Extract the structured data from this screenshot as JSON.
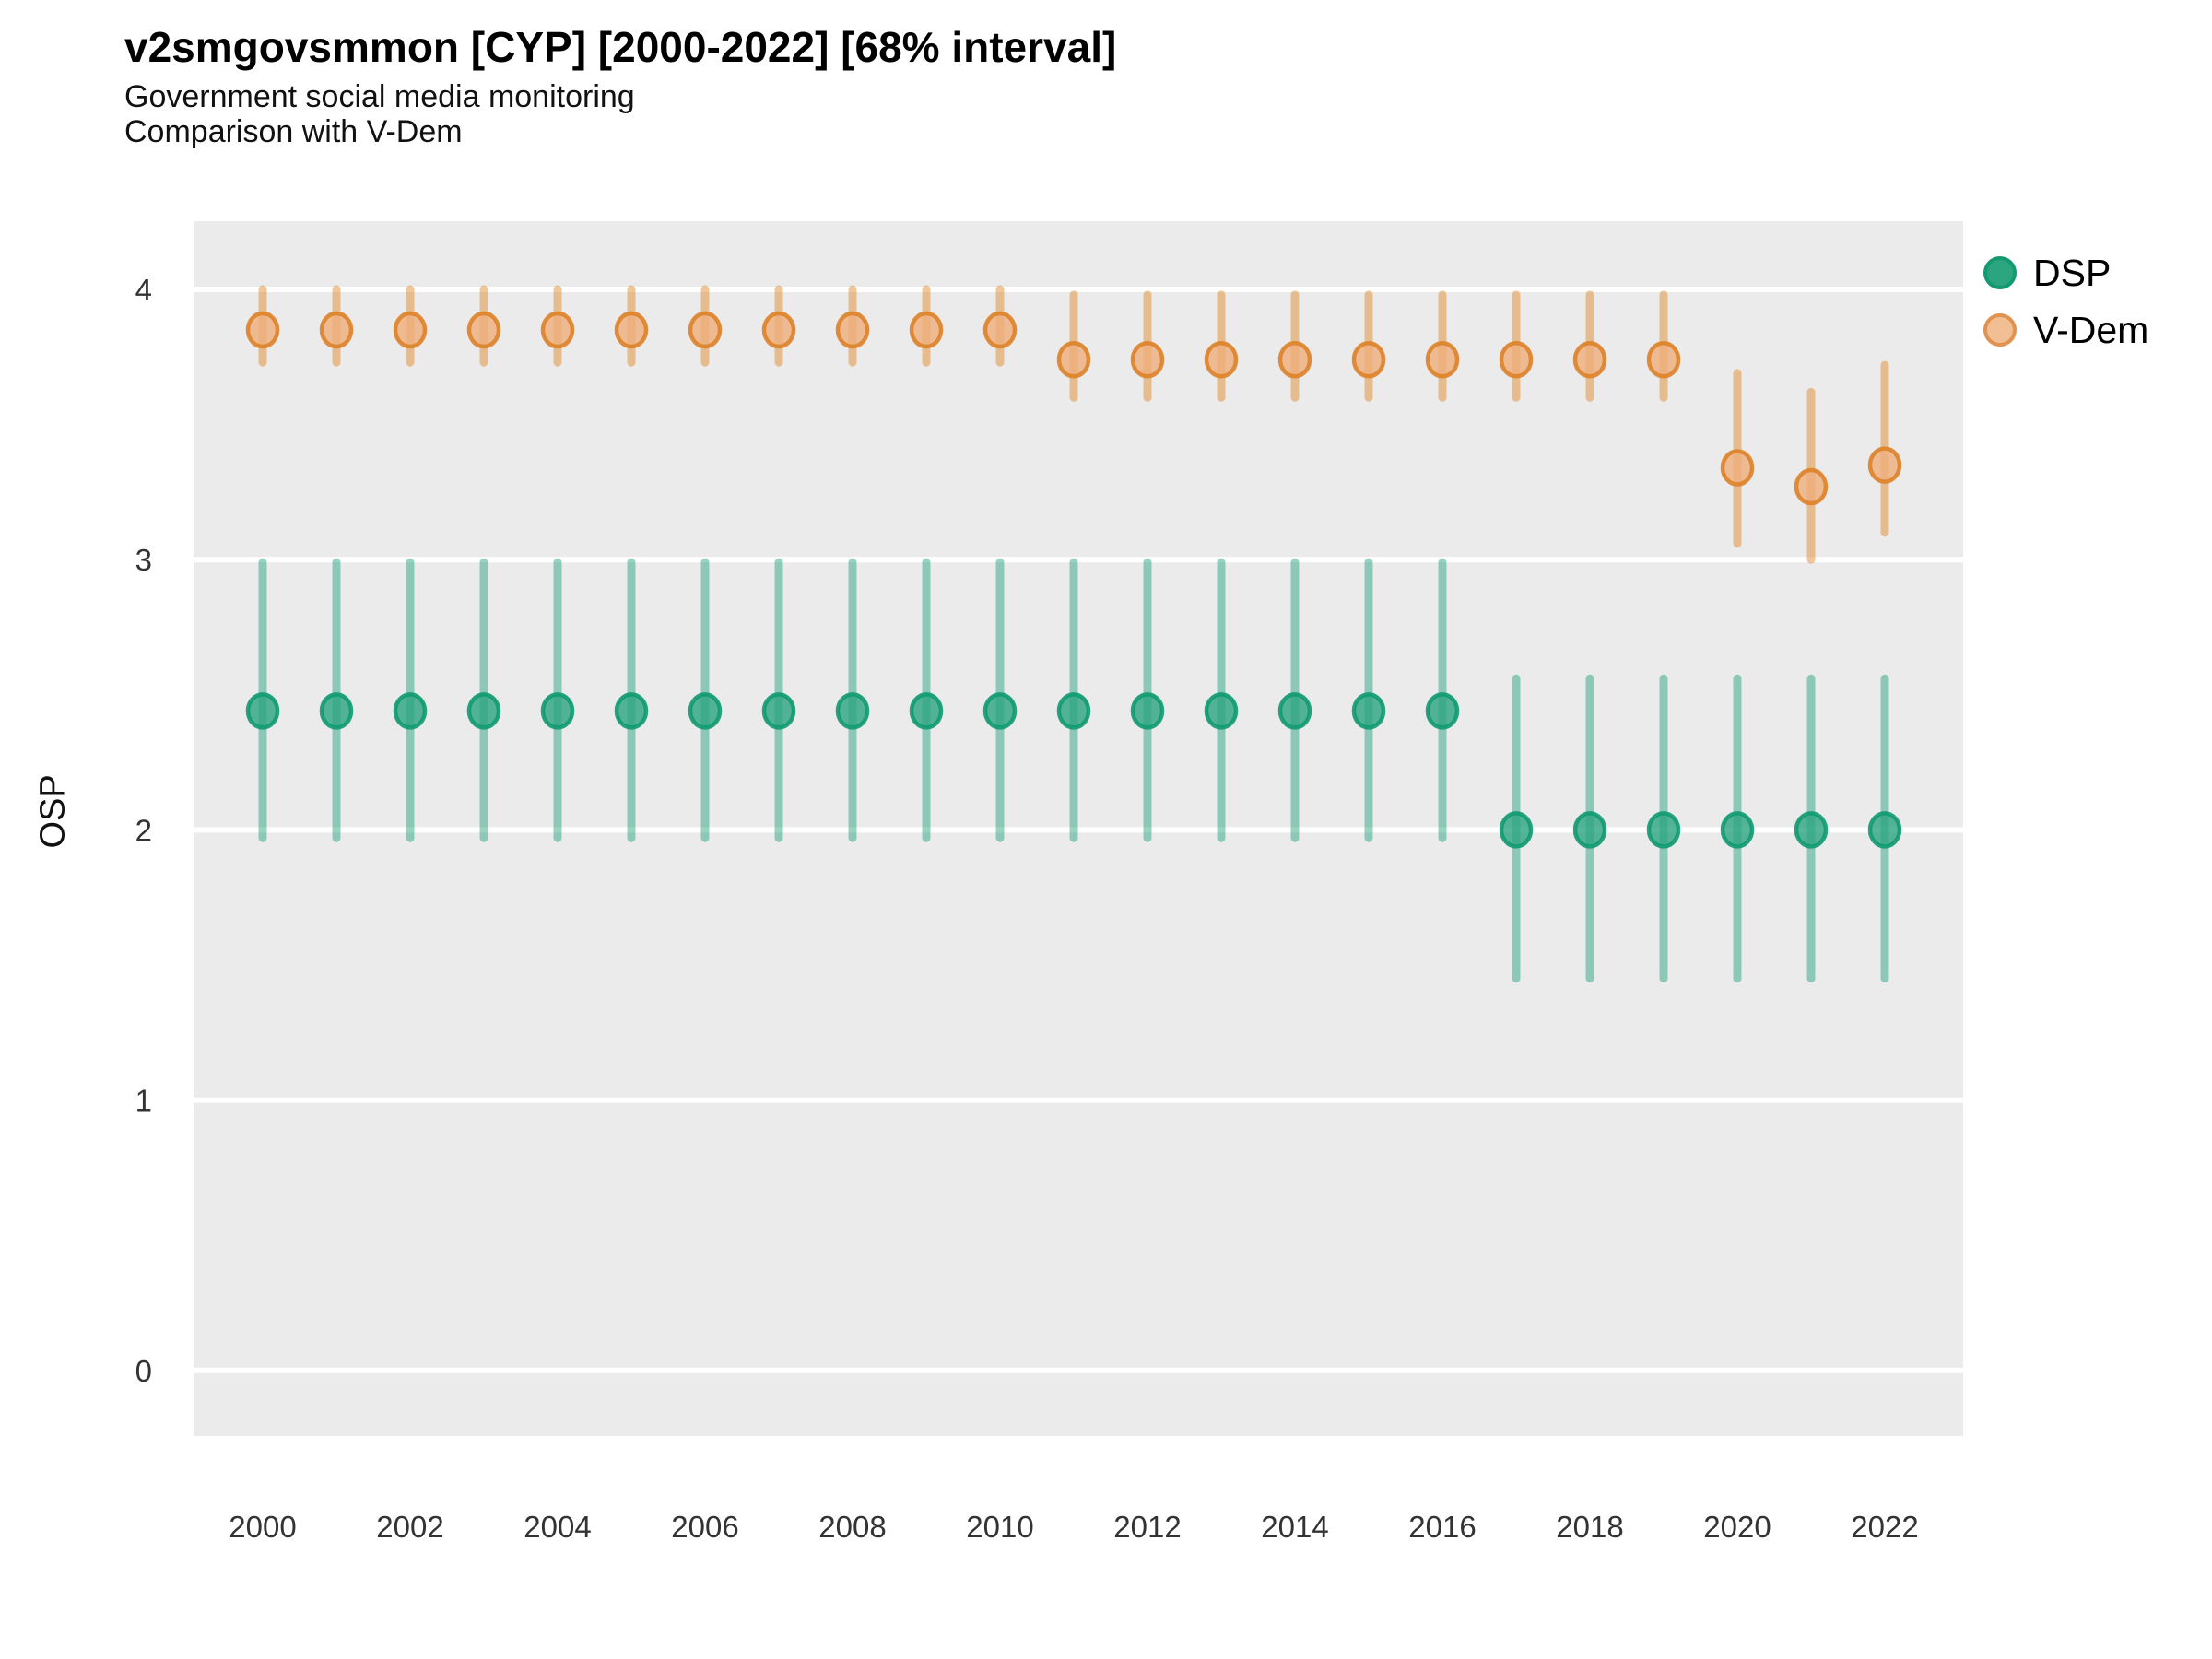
{
  "header": {
    "title": "v2smgovsmmon [CYP] [2000-2022] [68% interval]",
    "subtitle1": "Government social media monitoring",
    "subtitle2": "Comparison with V-Dem"
  },
  "legend": {
    "position": "right",
    "items": [
      {
        "label": "DSP",
        "fill": "#2aa57e",
        "stroke": "#149a71"
      },
      {
        "label": "V-Dem",
        "fill": "#f2bf94",
        "stroke": "#e09250"
      }
    ]
  },
  "colors": {
    "panel_background": "#ebebeb",
    "gridline": "#ffffff",
    "dsp_bar": "#1b9e77",
    "dsp_point_fill": "#2aa57e",
    "dsp_point_stroke": "#0f9a70",
    "vdem_bar": "#e0821e",
    "vdem_point_fill": "#efae7a",
    "vdem_point_stroke": "#dd8228",
    "tick_text": "#333333"
  },
  "chart_data": {
    "type": "scatter",
    "variant": "pointrange",
    "title": "v2smgovsmmon [CYP] [2000-2022] [68% interval]",
    "subtitle": [
      "Government social media monitoring",
      "Comparison with V-Dem"
    ],
    "interval": "68%",
    "xlabel": "",
    "ylabel": "OSP",
    "ylim": [
      -0.25,
      4.25
    ],
    "yticks": [
      0,
      1,
      2,
      3,
      4
    ],
    "xticks": [
      2000,
      2002,
      2004,
      2006,
      2008,
      2010,
      2012,
      2014,
      2016,
      2018,
      2020,
      2022
    ],
    "grid": "horizontal-major-only",
    "legend_position": "right",
    "series": [
      {
        "name": "DSP",
        "columns": [
          "year",
          "estimate",
          "lower68",
          "upper68"
        ],
        "values": [
          [
            2000,
            2.44,
            1.97,
            2.99
          ],
          [
            2001,
            2.44,
            1.97,
            2.99
          ],
          [
            2002,
            2.44,
            1.97,
            2.99
          ],
          [
            2003,
            2.44,
            1.97,
            2.99
          ],
          [
            2004,
            2.44,
            1.97,
            2.99
          ],
          [
            2005,
            2.44,
            1.97,
            2.99
          ],
          [
            2006,
            2.44,
            1.97,
            2.99
          ],
          [
            2007,
            2.44,
            1.97,
            2.99
          ],
          [
            2008,
            2.44,
            1.97,
            2.99
          ],
          [
            2009,
            2.44,
            1.97,
            2.99
          ],
          [
            2010,
            2.44,
            1.97,
            2.99
          ],
          [
            2011,
            2.44,
            1.97,
            2.99
          ],
          [
            2012,
            2.44,
            1.97,
            2.99
          ],
          [
            2013,
            2.44,
            1.97,
            2.99
          ],
          [
            2014,
            2.44,
            1.97,
            2.99
          ],
          [
            2015,
            2.44,
            1.97,
            2.99
          ],
          [
            2016,
            2.44,
            1.97,
            2.99
          ],
          [
            2017,
            2.0,
            1.45,
            2.56
          ],
          [
            2018,
            2.0,
            1.45,
            2.56
          ],
          [
            2019,
            2.0,
            1.45,
            2.56
          ],
          [
            2020,
            2.0,
            1.45,
            2.56
          ],
          [
            2021,
            2.0,
            1.45,
            2.56
          ],
          [
            2022,
            2.0,
            1.45,
            2.56
          ]
        ]
      },
      {
        "name": "V-Dem",
        "columns": [
          "year",
          "estimate",
          "lower68",
          "upper68"
        ],
        "values": [
          [
            2000,
            3.85,
            3.73,
            4.0
          ],
          [
            2001,
            3.85,
            3.73,
            4.0
          ],
          [
            2002,
            3.85,
            3.73,
            4.0
          ],
          [
            2003,
            3.85,
            3.73,
            4.0
          ],
          [
            2004,
            3.85,
            3.73,
            4.0
          ],
          [
            2005,
            3.85,
            3.73,
            4.0
          ],
          [
            2006,
            3.85,
            3.73,
            4.0
          ],
          [
            2007,
            3.85,
            3.73,
            4.0
          ],
          [
            2008,
            3.85,
            3.73,
            4.0
          ],
          [
            2009,
            3.85,
            3.73,
            4.0
          ],
          [
            2010,
            3.85,
            3.73,
            4.0
          ],
          [
            2011,
            3.74,
            3.6,
            3.98
          ],
          [
            2012,
            3.74,
            3.6,
            3.98
          ],
          [
            2013,
            3.74,
            3.6,
            3.98
          ],
          [
            2014,
            3.74,
            3.6,
            3.98
          ],
          [
            2015,
            3.74,
            3.6,
            3.98
          ],
          [
            2016,
            3.74,
            3.6,
            3.98
          ],
          [
            2017,
            3.74,
            3.6,
            3.98
          ],
          [
            2018,
            3.74,
            3.6,
            3.98
          ],
          [
            2019,
            3.74,
            3.6,
            3.98
          ],
          [
            2020,
            3.34,
            3.06,
            3.69
          ],
          [
            2021,
            3.27,
            3.0,
            3.62
          ],
          [
            2022,
            3.35,
            3.1,
            3.72
          ]
        ]
      }
    ]
  }
}
